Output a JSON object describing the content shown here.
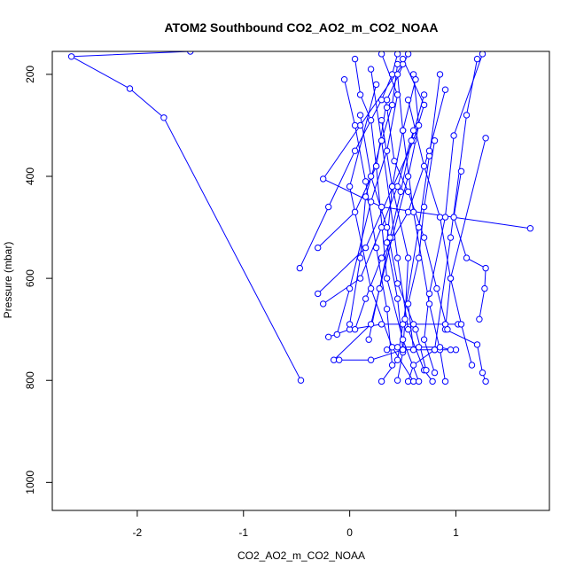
{
  "chart_data": {
    "type": "line",
    "title": "ATOM2 Southbound CO2_AO2_m_CO2_NOAA",
    "xlabel": "CO2_AO2_m_CO2_NOAA",
    "ylabel": "Pressure (mbar)",
    "xlim": [
      -2.8,
      1.88
    ],
    "ylim": [
      1055,
      155
    ],
    "y_inverted": true,
    "grid": false,
    "legend": "none",
    "color": "#0000ff",
    "marker": "open-circle",
    "x_ticks": [
      -2,
      -1,
      0,
      1
    ],
    "y_ticks": [
      200,
      400,
      600,
      800,
      1000
    ],
    "series": [
      {
        "x": [
          -0.46,
          -1.75,
          -2.07,
          -2.62,
          -1.5
        ],
        "y": [
          800,
          285,
          228,
          165,
          155
        ]
      },
      {
        "x": [
          1.7,
          0.3,
          -0.25,
          0.1,
          0.5
        ],
        "y": [
          502,
          460,
          405,
          300,
          180
        ]
      },
      {
        "x": [
          -0.47,
          -0.2,
          0.05,
          0.3,
          0.4,
          0.45
        ],
        "y": [
          580,
          460,
          350,
          250,
          200,
          160
        ]
      },
      {
        "x": [
          -0.3,
          0.15,
          0.6,
          0.7,
          0.5
        ],
        "y": [
          630,
          540,
          330,
          260,
          170
        ]
      },
      {
        "x": [
          -0.15,
          0.2,
          0.4,
          0.55,
          0.65,
          0.6
        ],
        "y": [
          760,
          690,
          520,
          400,
          300,
          200
        ]
      },
      {
        "x": [
          1.28,
          1.25,
          1.2,
          0.9,
          0.95,
          1.28
        ],
        "y": [
          802,
          785,
          730,
          700,
          600,
          325
        ]
      },
      {
        "x": [
          0.3,
          0.45,
          0.5,
          0.65,
          0.75,
          0.85
        ],
        "y": [
          802,
          760,
          690,
          500,
          360,
          200
        ]
      },
      {
        "x": [
          0.55,
          0.6,
          0.8,
          0.95,
          1.1,
          1.2
        ],
        "y": [
          802,
          770,
          740,
          520,
          280,
          170
        ]
      },
      {
        "x": [
          0.6,
          0.4,
          0.2,
          0.0,
          0.25
        ],
        "y": [
          802,
          735,
          620,
          420,
          220
        ]
      },
      {
        "x": [
          0.65,
          0.5,
          0.35,
          0.25,
          0.35,
          0.55
        ],
        "y": [
          802,
          720,
          600,
          380,
          250,
          160
        ]
      },
      {
        "x": [
          0.78,
          0.7,
          0.55,
          0.45,
          0.3,
          0.2
        ],
        "y": [
          802,
          780,
          700,
          560,
          330,
          190
        ]
      },
      {
        "x": [
          0.9,
          0.85,
          0.75,
          0.6,
          0.5,
          0.45
        ],
        "y": [
          802,
          740,
          650,
          470,
          310,
          200
        ]
      },
      {
        "x": [
          -0.1,
          0.2,
          0.5,
          0.8,
          1.0
        ],
        "y": [
          760,
          760,
          740,
          740,
          740
        ]
      },
      {
        "x": [
          -0.2,
          0.0,
          0.3,
          0.6,
          0.9,
          1.02
        ],
        "y": [
          715,
          700,
          690,
          690,
          690,
          690
        ]
      },
      {
        "x": [
          0.35,
          0.45,
          0.65,
          0.85,
          0.95
        ],
        "y": [
          740,
          735,
          735,
          735,
          740
        ]
      },
      {
        "x": [
          -0.3,
          0.05,
          0.25,
          0.2,
          0.1,
          0.05
        ],
        "y": [
          540,
          470,
          380,
          290,
          240,
          170
        ]
      },
      {
        "x": [
          -0.25,
          0.1,
          0.3,
          0.45,
          0.6
        ],
        "y": [
          650,
          600,
          500,
          420,
          310
        ]
      },
      {
        "x": [
          0.45,
          0.5,
          0.52,
          0.55,
          0.4,
          0.3
        ],
        "y": [
          800,
          745,
          680,
          560,
          420,
          290
        ]
      },
      {
        "x": [
          0.05,
          0.15,
          0.3,
          0.55,
          0.75,
          0.9
        ],
        "y": [
          700,
          640,
          560,
          470,
          350,
          230
        ]
      },
      {
        "x": [
          0.72,
          0.62,
          0.45,
          0.35,
          0.2,
          0.1
        ],
        "y": [
          780,
          700,
          610,
          500,
          400,
          280
        ]
      },
      {
        "x": [
          1.15,
          1.05,
          0.95,
          0.85,
          0.7,
          0.55
        ],
        "y": [
          770,
          690,
          600,
          480,
          380,
          250
        ]
      },
      {
        "x": [
          0.4,
          0.35,
          0.25,
          0.15,
          0.05,
          -0.05
        ],
        "y": [
          770,
          660,
          540,
          410,
          300,
          210
        ]
      },
      {
        "x": [
          0.8,
          0.7,
          0.75,
          0.9,
          0.98,
          1.25
        ],
        "y": [
          785,
          720,
          630,
          480,
          320,
          160
        ]
      },
      {
        "x": [
          0.18,
          0.28,
          0.38,
          0.48,
          0.58,
          0.7
        ],
        "y": [
          720,
          620,
          520,
          430,
          330,
          240
        ]
      },
      {
        "x": [
          1.22,
          1.27,
          1.28,
          1.1,
          0.98,
          1.05
        ],
        "y": [
          680,
          620,
          580,
          560,
          480,
          390
        ]
      },
      {
        "x": [
          0.0,
          0.1,
          0.15,
          0.3,
          0.4,
          0.45
        ],
        "y": [
          690,
          560,
          440,
          330,
          260,
          180
        ]
      },
      {
        "x": [
          0.6,
          0.55,
          0.65,
          0.7,
          0.8
        ],
        "y": [
          740,
          650,
          560,
          460,
          330
        ]
      },
      {
        "x": [
          0.5,
          0.45,
          0.35,
          0.4,
          0.5,
          0.62
        ],
        "y": [
          740,
          640,
          530,
          420,
          310,
          210
        ]
      },
      {
        "x": [
          -0.12,
          0.0,
          0.2,
          0.35,
          0.45,
          0.3
        ],
        "y": [
          710,
          620,
          450,
          350,
          240,
          160
        ]
      },
      {
        "x": [
          0.92,
          0.82,
          0.7,
          0.55,
          0.42,
          0.35
        ],
        "y": [
          700,
          620,
          520,
          430,
          370,
          265
        ]
      }
    ]
  }
}
